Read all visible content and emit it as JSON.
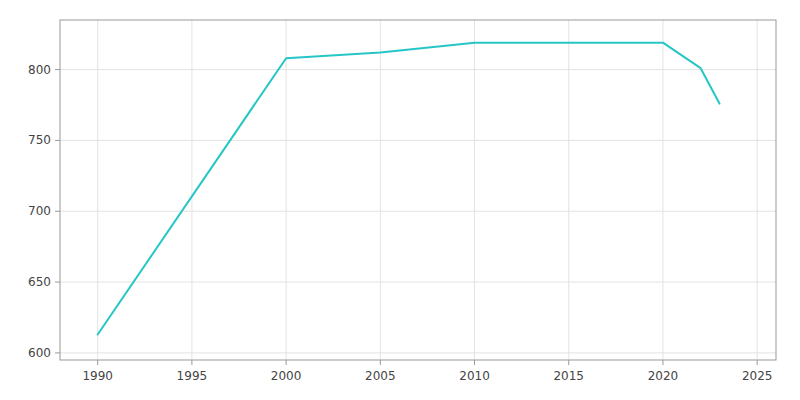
{
  "chart_data": {
    "type": "line",
    "x": [
      1990,
      2000,
      2005,
      2010,
      2015,
      2020,
      2022,
      2023
    ],
    "values": [
      613,
      808,
      812,
      819,
      819,
      819,
      801,
      776
    ],
    "color": "#26C6C6",
    "xlim": [
      1988,
      2026
    ],
    "ylim": [
      595,
      835
    ],
    "xticks": [
      1990,
      1995,
      2000,
      2005,
      2010,
      2015,
      2020,
      2025
    ],
    "yticks": [
      600,
      650,
      700,
      750,
      800
    ],
    "grid": true
  }
}
